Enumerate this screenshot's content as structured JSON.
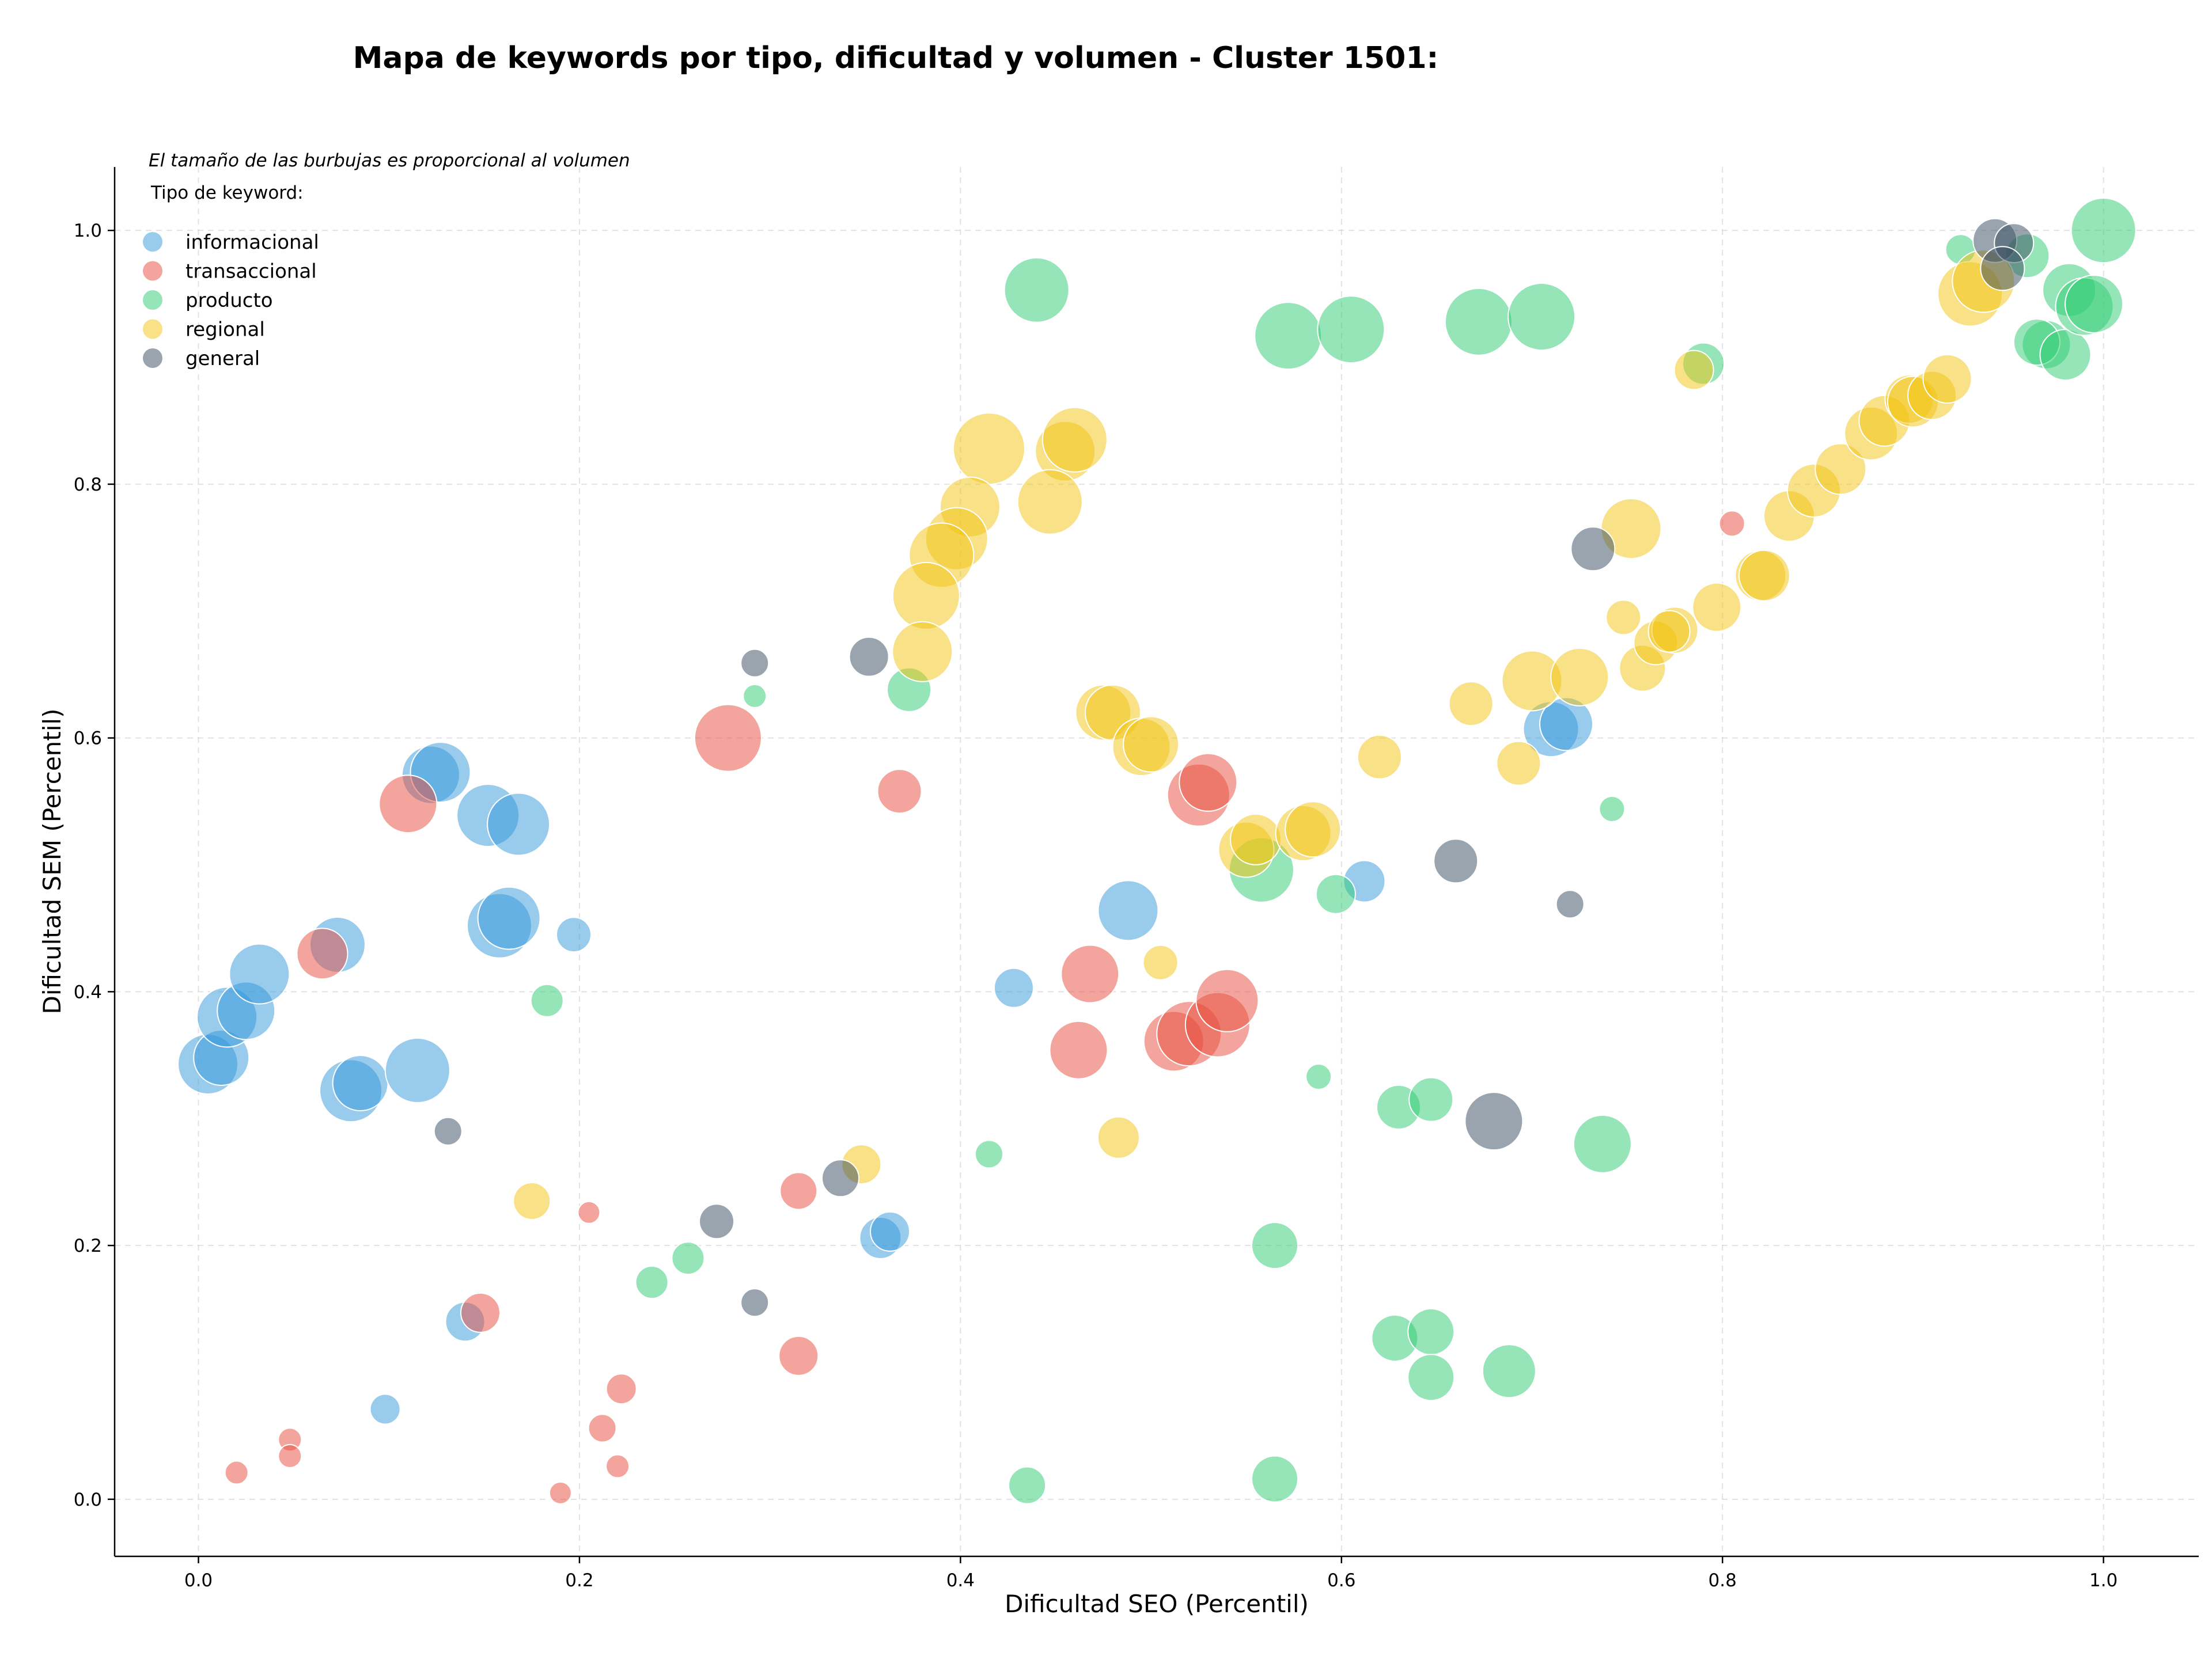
{
  "chart_data": {
    "type": "scatter",
    "title": "Mapa de keywords por tipo, dificultad y volumen - Cluster 1501:",
    "xlabel": "Dificultad SEO (Percentil)",
    "ylabel": "Dificultad SEM (Percentil)",
    "xlim": [
      -0.044,
      1.05
    ],
    "ylim": [
      -0.045,
      1.05
    ],
    "xticks": [
      0.0,
      0.2,
      0.4,
      0.6,
      0.8,
      1.0
    ],
    "yticks": [
      0.0,
      0.2,
      0.4,
      0.6,
      0.8,
      1.0
    ],
    "xtick_labels": [
      "0.0",
      "0.2",
      "0.4",
      "0.6",
      "0.8",
      "1.0"
    ],
    "ytick_labels": [
      "0.0",
      "0.2",
      "0.4",
      "0.6",
      "0.8",
      "1.0"
    ],
    "grid": true,
    "legend": {
      "placement": "top-left",
      "note": "El tamaño de las burbujas es proporcional al volumen",
      "title": "Tipo de keyword:"
    },
    "series": [
      {
        "name": "informacional",
        "color": "#3498db",
        "points": [
          [
            0.005,
            0.343,
            52
          ],
          [
            0.012,
            0.348,
            48
          ],
          [
            0.015,
            0.38,
            52
          ],
          [
            0.025,
            0.385,
            50
          ],
          [
            0.032,
            0.414,
            52
          ],
          [
            0.073,
            0.437,
            48
          ],
          [
            0.08,
            0.322,
            54
          ],
          [
            0.085,
            0.328,
            48
          ],
          [
            0.115,
            0.338,
            56
          ],
          [
            0.122,
            0.571,
            50
          ],
          [
            0.127,
            0.573,
            52
          ],
          [
            0.152,
            0.539,
            54
          ],
          [
            0.158,
            0.452,
            56
          ],
          [
            0.163,
            0.458,
            54
          ],
          [
            0.168,
            0.532,
            54
          ],
          [
            0.197,
            0.445,
            30
          ],
          [
            0.14,
            0.14,
            34
          ],
          [
            0.098,
            0.071,
            26
          ],
          [
            0.358,
            0.206,
            36
          ],
          [
            0.363,
            0.211,
            34
          ],
          [
            0.428,
            0.403,
            34
          ],
          [
            0.488,
            0.464,
            52
          ],
          [
            0.612,
            0.487,
            36
          ],
          [
            0.71,
            0.607,
            48
          ],
          [
            0.718,
            0.611,
            46
          ]
        ]
      },
      {
        "name": "transaccional",
        "color": "#e74c3c",
        "points": [
          [
            0.065,
            0.43,
            44
          ],
          [
            0.11,
            0.548,
            50
          ],
          [
            0.278,
            0.6,
            58
          ],
          [
            0.368,
            0.558,
            38
          ],
          [
            0.22,
            0.026,
            20
          ],
          [
            0.048,
            0.047,
            20
          ],
          [
            0.048,
            0.034,
            20
          ],
          [
            0.02,
            0.021,
            20
          ],
          [
            0.19,
            0.005,
            19
          ],
          [
            0.205,
            0.226,
            19
          ],
          [
            0.148,
            0.147,
            34
          ],
          [
            0.222,
            0.087,
            26
          ],
          [
            0.212,
            0.056,
            24
          ],
          [
            0.315,
            0.113,
            34
          ],
          [
            0.315,
            0.243,
            32
          ],
          [
            0.462,
            0.354,
            50
          ],
          [
            0.468,
            0.414,
            50
          ],
          [
            0.512,
            0.361,
            52
          ],
          [
            0.52,
            0.367,
            56
          ],
          [
            0.535,
            0.374,
            56
          ],
          [
            0.54,
            0.393,
            54
          ],
          [
            0.525,
            0.555,
            54
          ],
          [
            0.53,
            0.565,
            50
          ],
          [
            0.805,
            0.769,
            22
          ]
        ]
      },
      {
        "name": "producto",
        "color": "#2ecc71",
        "points": [
          [
            0.44,
            0.953,
            56
          ],
          [
            0.572,
            0.917,
            58
          ],
          [
            0.605,
            0.922,
            58
          ],
          [
            0.672,
            0.928,
            58
          ],
          [
            0.705,
            0.932,
            58
          ],
          [
            0.79,
            0.895,
            36
          ],
          [
            0.925,
            0.985,
            26
          ],
          [
            0.96,
            0.98,
            38
          ],
          [
            0.982,
            0.953,
            46
          ],
          [
            0.97,
            0.91,
            42
          ],
          [
            0.965,
            0.912,
            40
          ],
          [
            0.98,
            0.902,
            44
          ],
          [
            0.99,
            0.94,
            50
          ],
          [
            1.0,
            1.0,
            56
          ],
          [
            0.995,
            0.942,
            50
          ],
          [
            0.292,
            0.633,
            20
          ],
          [
            0.373,
            0.638,
            38
          ],
          [
            0.183,
            0.393,
            28
          ],
          [
            0.742,
            0.544,
            22
          ],
          [
            0.558,
            0.496,
            56
          ],
          [
            0.597,
            0.477,
            34
          ],
          [
            0.588,
            0.333,
            22
          ],
          [
            0.63,
            0.309,
            38
          ],
          [
            0.647,
            0.315,
            38
          ],
          [
            0.737,
            0.28,
            50
          ],
          [
            0.415,
            0.272,
            24
          ],
          [
            0.257,
            0.19,
            28
          ],
          [
            0.238,
            0.171,
            28
          ],
          [
            0.565,
            0.2,
            40
          ],
          [
            0.628,
            0.127,
            40
          ],
          [
            0.647,
            0.132,
            40
          ],
          [
            0.647,
            0.096,
            40
          ],
          [
            0.688,
            0.101,
            46
          ],
          [
            0.435,
            0.011,
            32
          ],
          [
            0.565,
            0.016,
            40
          ]
        ]
      },
      {
        "name": "regional",
        "color": "#f1c40f",
        "points": [
          [
            0.415,
            0.828,
            62
          ],
          [
            0.455,
            0.826,
            52
          ],
          [
            0.46,
            0.835,
            56
          ],
          [
            0.447,
            0.786,
            56
          ],
          [
            0.405,
            0.782,
            52
          ],
          [
            0.398,
            0.757,
            54
          ],
          [
            0.39,
            0.744,
            56
          ],
          [
            0.382,
            0.712,
            58
          ],
          [
            0.38,
            0.668,
            52
          ],
          [
            0.475,
            0.62,
            48
          ],
          [
            0.48,
            0.62,
            48
          ],
          [
            0.495,
            0.593,
            50
          ],
          [
            0.5,
            0.595,
            48
          ],
          [
            0.55,
            0.512,
            48
          ],
          [
            0.555,
            0.52,
            44
          ],
          [
            0.58,
            0.525,
            48
          ],
          [
            0.585,
            0.528,
            48
          ],
          [
            0.62,
            0.585,
            38
          ],
          [
            0.668,
            0.627,
            38
          ],
          [
            0.693,
            0.58,
            38
          ],
          [
            0.7,
            0.645,
            52
          ],
          [
            0.725,
            0.648,
            50
          ],
          [
            0.748,
            0.695,
            30
          ],
          [
            0.752,
            0.765,
            52
          ],
          [
            0.758,
            0.655,
            40
          ],
          [
            0.765,
            0.675,
            38
          ],
          [
            0.775,
            0.685,
            40
          ],
          [
            0.772,
            0.684,
            36
          ],
          [
            0.797,
            0.703,
            42
          ],
          [
            0.82,
            0.728,
            44
          ],
          [
            0.822,
            0.728,
            44
          ],
          [
            0.835,
            0.775,
            44
          ],
          [
            0.848,
            0.795,
            46
          ],
          [
            0.862,
            0.812,
            44
          ],
          [
            0.878,
            0.84,
            46
          ],
          [
            0.885,
            0.85,
            44
          ],
          [
            0.898,
            0.867,
            42
          ],
          [
            0.9,
            0.865,
            44
          ],
          [
            0.91,
            0.87,
            42
          ],
          [
            0.918,
            0.883,
            42
          ],
          [
            0.93,
            0.95,
            56
          ],
          [
            0.937,
            0.96,
            54
          ],
          [
            0.785,
            0.89,
            34
          ],
          [
            0.505,
            0.423,
            30
          ],
          [
            0.483,
            0.285,
            36
          ],
          [
            0.348,
            0.264,
            34
          ],
          [
            0.175,
            0.235,
            32
          ]
        ]
      },
      {
        "name": "general",
        "color": "#34495e",
        "points": [
          [
            0.292,
            0.659,
            24
          ],
          [
            0.352,
            0.664,
            34
          ],
          [
            0.131,
            0.29,
            24
          ],
          [
            0.272,
            0.219,
            30
          ],
          [
            0.292,
            0.155,
            24
          ],
          [
            0.337,
            0.253,
            32
          ],
          [
            0.66,
            0.503,
            38
          ],
          [
            0.68,
            0.298,
            50
          ],
          [
            0.72,
            0.469,
            24
          ],
          [
            0.732,
            0.749,
            38
          ],
          [
            0.943,
            0.992,
            38
          ],
          [
            0.953,
            0.99,
            34
          ],
          [
            0.947,
            0.97,
            38
          ]
        ]
      }
    ]
  }
}
